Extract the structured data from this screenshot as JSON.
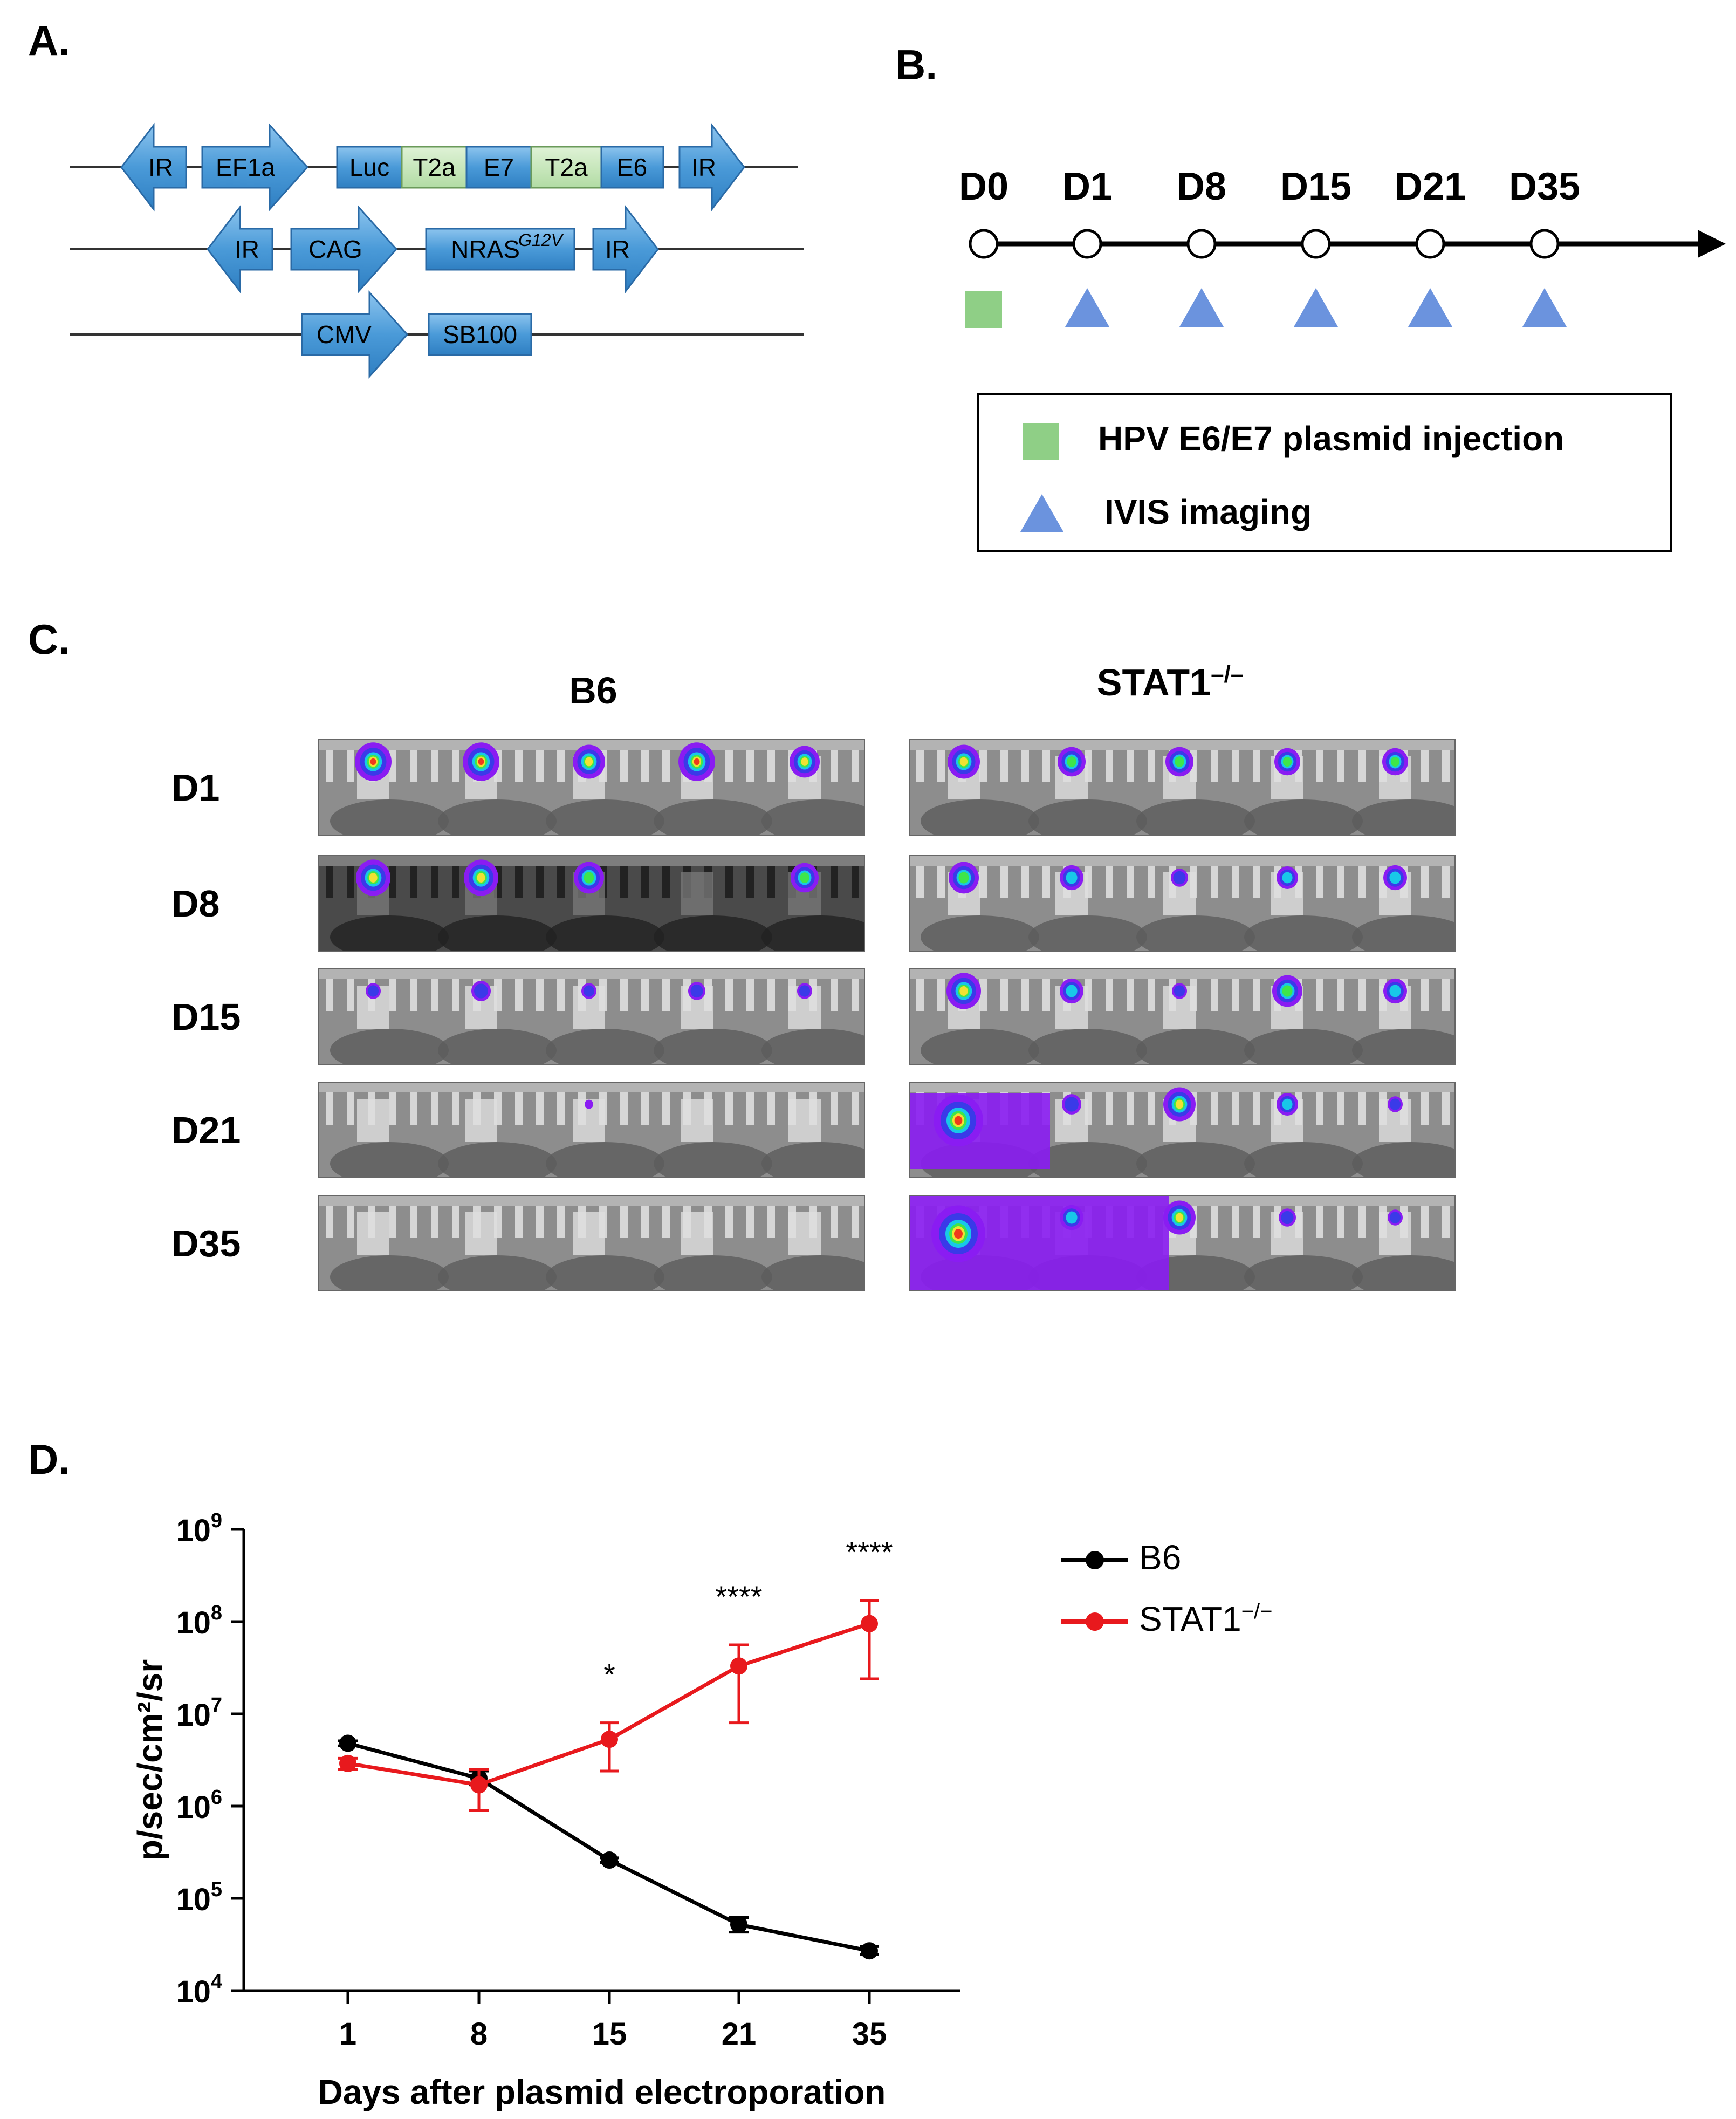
{
  "panels": {
    "a": "A.",
    "b": "B.",
    "c": "C.",
    "d": "D."
  },
  "colors": {
    "construct_blue": "#4a9ad8",
    "construct_green": "#bfe3b4",
    "green_marker": "#8fcf86",
    "blue_marker": "#6b93de",
    "b6": "#000000",
    "stat1": "#e8191d"
  },
  "panel_a": {
    "construct1": {
      "ir_left": "IR",
      "ef1a": "EF1a",
      "luc": "Luc",
      "t2a_1": "T2a",
      "e7": "E7",
      "t2a_2": "T2a",
      "e6": "E6",
      "ir_right": "IR"
    },
    "construct2": {
      "ir_left": "IR",
      "cag": "CAG",
      "nras": "NRAS",
      "nras_sup": "G12V",
      "ir_right": "IR"
    },
    "construct3": {
      "cmv": "CMV",
      "sb100": "SB100"
    }
  },
  "panel_b": {
    "days": [
      "D0",
      "D1",
      "D8",
      "D15",
      "D21",
      "D35"
    ],
    "legend": {
      "injection": "HPV E6/E7 plasmid injection",
      "imaging": "IVIS imaging"
    }
  },
  "panel_c": {
    "col_b6": "B6",
    "col_stat1": "STAT1",
    "col_stat1_sup": "–/–",
    "rows": [
      "D1",
      "D8",
      "D15",
      "D21",
      "D35"
    ]
  },
  "legend": {
    "b6": "B6",
    "stat1": "STAT1",
    "stat1_sup": "−/−"
  },
  "chart_data": {
    "type": "line",
    "title": "",
    "xlabel": "Days after plasmid electroporation",
    "ylabel": "p/sec/cm²/sr",
    "y_scale": "log10",
    "ylim": [
      10000,
      1000000000
    ],
    "y_ticks": [
      {
        "base": "10",
        "exp": "4"
      },
      {
        "base": "10",
        "exp": "5"
      },
      {
        "base": "10",
        "exp": "6"
      },
      {
        "base": "10",
        "exp": "7"
      },
      {
        "base": "10",
        "exp": "8"
      },
      {
        "base": "10",
        "exp": "9"
      }
    ],
    "categories": [
      "1",
      "8",
      "15",
      "21",
      "35"
    ],
    "series": [
      {
        "name": "B6",
        "color": "#000000",
        "values": [
          4800000,
          2000000,
          260000,
          52000,
          27000
        ],
        "err_high": [
          5100000,
          2400000,
          275000,
          62000,
          30000
        ],
        "err_low": [
          4500000,
          1700000,
          245000,
          43000,
          24500
        ]
      },
      {
        "name": "STAT1−/−",
        "color": "#e8191d",
        "values": [
          2900000,
          1700000,
          5300000,
          33000000,
          95000000
        ],
        "err_high": [
          3300000,
          2500000,
          8000000,
          56000000,
          170000000
        ],
        "err_low": [
          2500000,
          900000,
          2400000,
          8000000,
          24000000
        ]
      }
    ],
    "significance": [
      "",
      "",
      "*",
      "****",
      "****"
    ]
  }
}
